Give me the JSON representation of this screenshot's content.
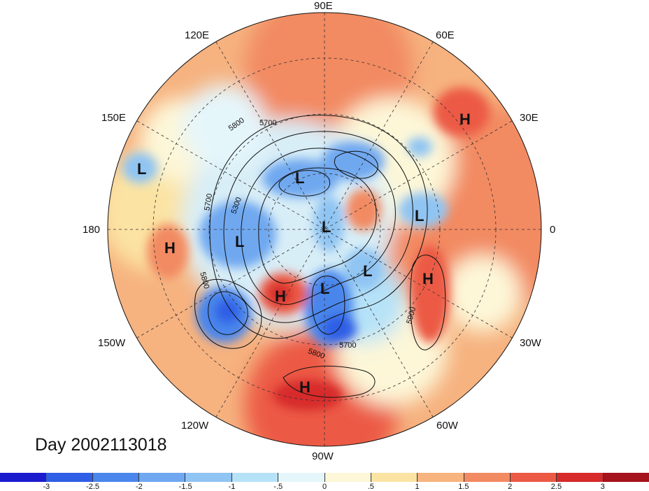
{
  "title": "Day 2002113018",
  "longitude_labels": {
    "n": "90E",
    "nne": "60E",
    "ene": "30E",
    "e": "0",
    "ese": "30W",
    "sse": "60W",
    "s": "90W",
    "ssw": "120W",
    "wsw": "150W",
    "w": "180",
    "wnw": "150E",
    "nnw": "120E"
  },
  "pressure_centers": [
    {
      "type": "H",
      "label": "H"
    },
    {
      "type": "L",
      "label": "L"
    },
    {
      "type": "L",
      "label": "L"
    },
    {
      "type": "L",
      "label": "L"
    },
    {
      "type": "L",
      "label": "L"
    },
    {
      "type": "L",
      "label": "L"
    },
    {
      "type": "H",
      "label": "H"
    },
    {
      "type": "L",
      "label": "L"
    },
    {
      "type": "L",
      "label": "L"
    },
    {
      "type": "H",
      "label": "H"
    },
    {
      "type": "H",
      "label": "H"
    },
    {
      "type": "H",
      "label": "H"
    }
  ],
  "contour_labels": [
    "5800",
    "5700",
    "5300",
    "5700",
    "5800",
    "5900",
    "5700",
    "5800"
  ],
  "colorbar": {
    "colors": [
      "#1c1ccf",
      "#2f5fe6",
      "#4a86ec",
      "#6fa8f0",
      "#8fc4f3",
      "#b6e2f8",
      "#e5f6fb",
      "#fdf7d8",
      "#fbe3a3",
      "#f7b47e",
      "#f28a62",
      "#ec5a45",
      "#d72a2a",
      "#a5131c"
    ],
    "tick_labels": [
      "-3",
      "-2.5",
      "-2",
      "-1.5",
      "-1",
      "-.5",
      "0",
      ".5",
      "1",
      "1.5",
      "2",
      "2.5",
      "3"
    ]
  }
}
